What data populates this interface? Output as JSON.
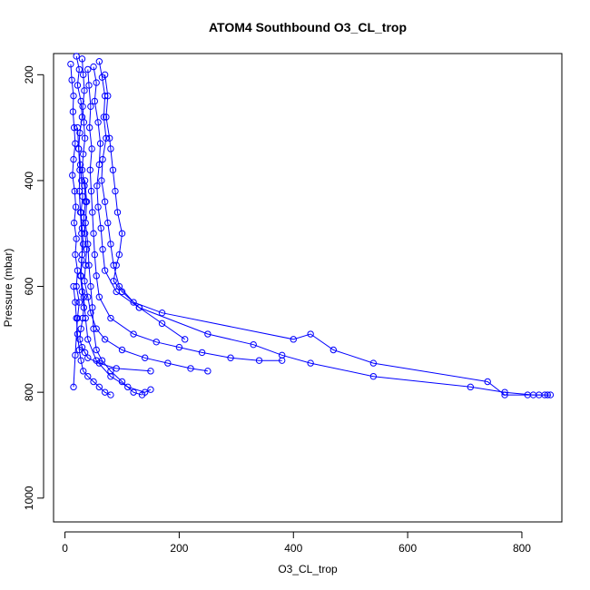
{
  "chart_data": {
    "type": "scatter",
    "title": "ATOM4 Southbound O3_CL_trop",
    "xlabel": "O3_CL_trop",
    "ylabel": "Pressure (mbar)",
    "xlim": [
      -20,
      870
    ],
    "ylim": [
      1045,
      160
    ],
    "y_reversed": true,
    "x_ticks": [
      0,
      200,
      400,
      600,
      800
    ],
    "y_ticks": [
      200,
      400,
      600,
      800,
      1000
    ],
    "grid": false,
    "legend": "none",
    "marker": "open-circle",
    "connected": true,
    "colors": {
      "series": "#0000ff",
      "axis": "#000000",
      "background": "#ffffff"
    },
    "series": [
      {
        "x": [
          20,
          25,
          22,
          28,
          30,
          26,
          24,
          27,
          29,
          31,
          28,
          30,
          32,
          29,
          27,
          30,
          33,
          31,
          28,
          26,
          30,
          35,
          40,
          60,
          90,
          150
        ],
        "y": [
          165,
          190,
          220,
          250,
          280,
          310,
          340,
          370,
          400,
          430,
          460,
          490,
          520,
          550,
          580,
          610,
          640,
          660,
          680,
          700,
          715,
          725,
          735,
          745,
          755,
          760
        ]
      },
      {
        "x": [
          30,
          32,
          34,
          31,
          33,
          35,
          32,
          30,
          34,
          36,
          33,
          35,
          38,
          36,
          34,
          40,
          45,
          55,
          70,
          100,
          140,
          180,
          220,
          250
        ],
        "y": [
          170,
          200,
          230,
          260,
          290,
          320,
          350,
          380,
          410,
          440,
          470,
          500,
          530,
          560,
          590,
          620,
          650,
          680,
          700,
          720,
          735,
          745,
          755,
          760
        ]
      },
      {
        "x": [
          10,
          12,
          15,
          14,
          16,
          18,
          15,
          13,
          17,
          19,
          16,
          20,
          18,
          22,
          20,
          25,
          22,
          18,
          15
        ],
        "y": [
          180,
          210,
          240,
          270,
          300,
          330,
          360,
          390,
          420,
          450,
          480,
          510,
          540,
          570,
          600,
          630,
          660,
          730,
          790
        ]
      },
      {
        "x": [
          60,
          65,
          70,
          68,
          72,
          66,
          64,
          70,
          75,
          80,
          85,
          95,
          120,
          170,
          400,
          430,
          470,
          540,
          740,
          770,
          810,
          830,
          845
        ],
        "y": [
          175,
          205,
          240,
          280,
          320,
          360,
          400,
          440,
          480,
          520,
          560,
          600,
          630,
          650,
          700,
          690,
          720,
          745,
          780,
          805,
          805,
          805,
          805
        ]
      },
      {
        "x": [
          50,
          55,
          52,
          58,
          62,
          60,
          56,
          58,
          63,
          66,
          70,
          90,
          130,
          250,
          330,
          380,
          430,
          540,
          710,
          770,
          820,
          840,
          850
        ],
        "y": [
          185,
          215,
          250,
          290,
          330,
          370,
          410,
          450,
          490,
          530,
          570,
          610,
          640,
          690,
          710,
          730,
          745,
          770,
          790,
          800,
          805,
          805,
          805
        ]
      },
      {
        "x": [
          40,
          42,
          45,
          43,
          47,
          44,
          46,
          48,
          50,
          52,
          55,
          60,
          80,
          120,
          160,
          200,
          240,
          290,
          340,
          380
        ],
        "y": [
          190,
          220,
          260,
          300,
          340,
          380,
          420,
          460,
          500,
          540,
          580,
          620,
          660,
          690,
          705,
          715,
          725,
          735,
          740,
          740
        ]
      },
      {
        "x": [
          70,
          75,
          72,
          78,
          80,
          84,
          88,
          92,
          100,
          95,
          90,
          85,
          100,
          130,
          170,
          210
        ],
        "y": [
          200,
          240,
          280,
          320,
          340,
          380,
          420,
          460,
          500,
          540,
          560,
          590,
          610,
          640,
          670,
          700
        ]
      },
      {
        "x": [
          22,
          24,
          26,
          25,
          27,
          29,
          30,
          28,
          33,
          36,
          40,
          55,
          80,
          110,
          140,
          150
        ],
        "y": [
          300,
          340,
          380,
          420,
          460,
          500,
          540,
          580,
          620,
          660,
          700,
          740,
          770,
          790,
          800,
          795
        ]
      },
      {
        "x": [
          35,
          38,
          36,
          40,
          42,
          45,
          48,
          50,
          55,
          65,
          80,
          100,
          120,
          135
        ],
        "y": [
          400,
          440,
          480,
          520,
          560,
          600,
          640,
          680,
          720,
          740,
          760,
          780,
          800,
          805
        ]
      },
      {
        "x": [
          15,
          18,
          20,
          22,
          25,
          28,
          32,
          40,
          50,
          60,
          70,
          80
        ],
        "y": [
          600,
          630,
          660,
          690,
          720,
          740,
          760,
          770,
          780,
          790,
          800,
          805
        ]
      }
    ]
  }
}
